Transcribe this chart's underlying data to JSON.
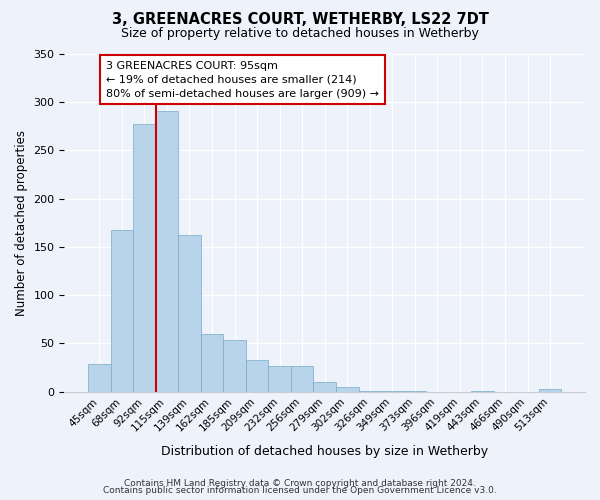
{
  "title": "3, GREENACRES COURT, WETHERBY, LS22 7DT",
  "subtitle": "Size of property relative to detached houses in Wetherby",
  "xlabel": "Distribution of detached houses by size in Wetherby",
  "ylabel": "Number of detached properties",
  "bar_labels": [
    "45sqm",
    "68sqm",
    "92sqm",
    "115sqm",
    "139sqm",
    "162sqm",
    "185sqm",
    "209sqm",
    "232sqm",
    "256sqm",
    "279sqm",
    "302sqm",
    "326sqm",
    "349sqm",
    "373sqm",
    "396sqm",
    "419sqm",
    "443sqm",
    "466sqm",
    "490sqm",
    "513sqm"
  ],
  "bar_values": [
    29,
    168,
    277,
    291,
    162,
    60,
    54,
    33,
    27,
    27,
    10,
    5,
    1,
    1,
    1,
    0,
    0,
    1,
    0,
    0,
    3
  ],
  "bar_color": "#b8d4eb",
  "bar_edge_color": "#7aaac8",
  "highlight_bar_index": 2,
  "highlight_color": "#cc0000",
  "ylim": [
    0,
    350
  ],
  "yticks": [
    0,
    50,
    100,
    150,
    200,
    250,
    300,
    350
  ],
  "annotation_title": "3 GREENACRES COURT: 95sqm",
  "annotation_line1": "← 19% of detached houses are smaller (214)",
  "annotation_line2": "80% of semi-detached houses are larger (909) →",
  "footer_line1": "Contains HM Land Registry data © Crown copyright and database right 2024.",
  "footer_line2": "Contains public sector information licensed under the Open Government Licence v3.0.",
  "fig_width": 6.0,
  "fig_height": 5.0,
  "background_color": "#eef2fa"
}
